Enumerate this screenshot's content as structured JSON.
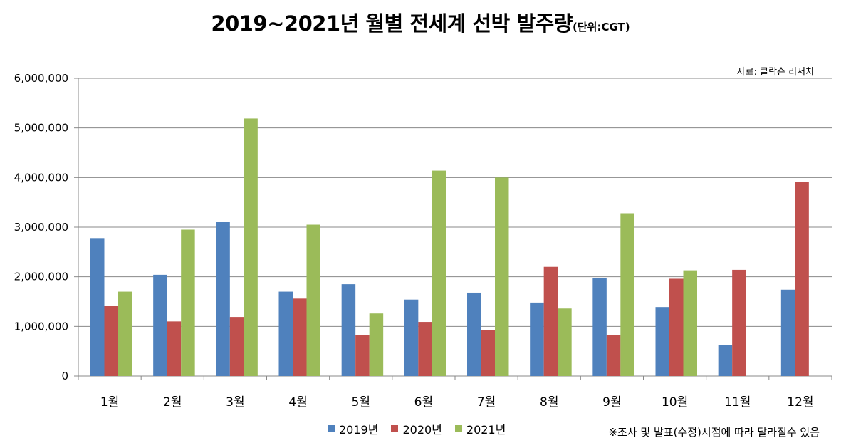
{
  "title": "2019~2021년 월별 전세계 선박 발주량",
  "unit_label": "(단위:CGT)",
  "source": "자료: 클락슨 리서치",
  "footnote": "※조사 및 발표(수정)시점에 따라 달라질수 있음",
  "colors": {
    "2019": "#4F81BD",
    "2020": "#C0504D",
    "2021": "#9BBB59",
    "grid": "#888888"
  },
  "chart_data": {
    "type": "bar",
    "title": "2019~2021년 월별 전세계 선박 발주량",
    "xlabel": "",
    "ylabel": "",
    "ylim": [
      0,
      6000000
    ],
    "yticks": [
      0,
      1000000,
      2000000,
      3000000,
      4000000,
      5000000,
      6000000
    ],
    "ytick_labels": [
      "0",
      "1,000,000",
      "2,000,000",
      "3,000,000",
      "4,000,000",
      "5,000,000",
      "6,000,000"
    ],
    "grid": true,
    "legend_position": "bottom",
    "categories": [
      "1월",
      "2월",
      "3월",
      "4월",
      "5월",
      "6월",
      "7월",
      "8월",
      "9월",
      "10월",
      "11월",
      "12월"
    ],
    "series": [
      {
        "name": "2019년",
        "color": "#4F81BD",
        "values": [
          2780000,
          2040000,
          3110000,
          1700000,
          1850000,
          1540000,
          1680000,
          1480000,
          1970000,
          1390000,
          630000,
          1740000
        ]
      },
      {
        "name": "2020년",
        "color": "#C0504D",
        "values": [
          1420000,
          1100000,
          1190000,
          1560000,
          830000,
          1090000,
          920000,
          2200000,
          830000,
          1960000,
          2140000,
          3910000
        ]
      },
      {
        "name": "2021년",
        "color": "#9BBB59",
        "values": [
          1700000,
          2950000,
          5190000,
          3050000,
          1260000,
          4140000,
          4000000,
          1360000,
          3280000,
          2130000,
          null,
          null
        ]
      }
    ]
  }
}
